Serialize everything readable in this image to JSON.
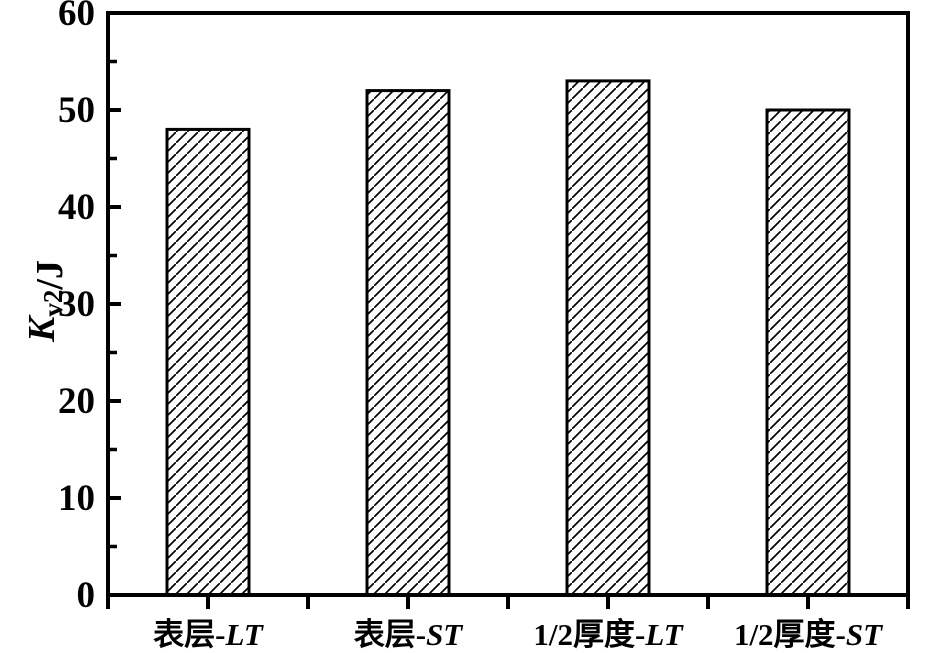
{
  "chart_data": {
    "type": "bar",
    "title": "",
    "xlabel": "",
    "ylabel": "Kv2/J",
    "ylabel_parts": [
      {
        "text": "K",
        "style": "italic"
      },
      {
        "text": "v2",
        "style": "subscript"
      },
      {
        "text": "/J",
        "style": "normal"
      }
    ],
    "categories": [
      "表层-LT",
      "表层-ST",
      "1/2厚度-LT",
      "1/2厚度-ST"
    ],
    "values": [
      48,
      52,
      53,
      50
    ],
    "ylim": [
      0,
      60
    ],
    "ytick_major_interval": 10,
    "ytick_minor_interval": 5,
    "ytick_labels": [
      "0",
      "10",
      "20",
      "30",
      "40",
      "50",
      "60"
    ],
    "bar_fill_style": "diagonal-hatch",
    "bar_color": "#000000",
    "background_color": "#ffffff",
    "frame": "full-box",
    "grid": "off",
    "legend": "none"
  }
}
